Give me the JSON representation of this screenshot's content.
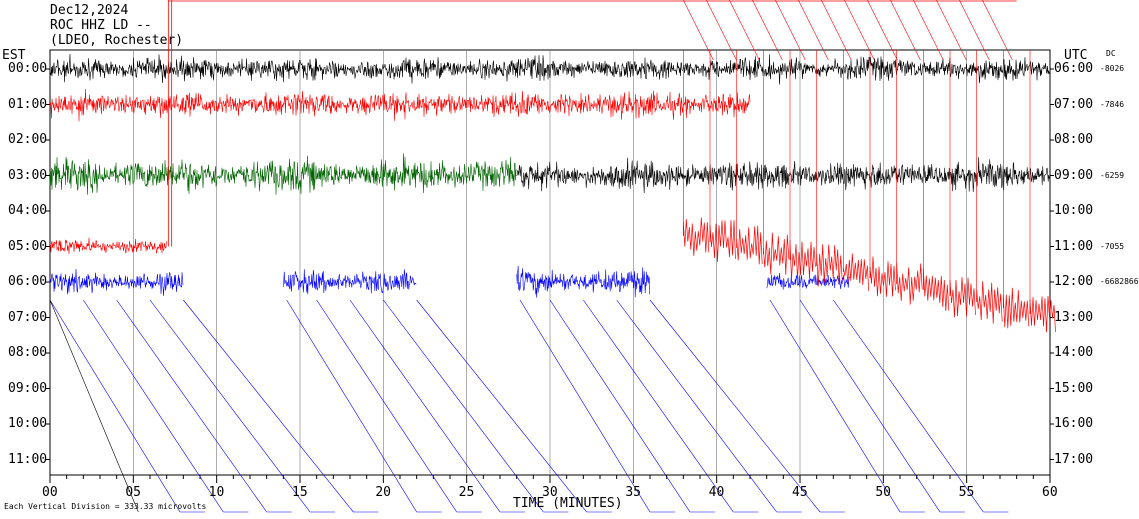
{
  "header": {
    "date": "Dec12,2024",
    "station": "ROC HHZ LD --",
    "network": "(LDEO, Rochester)"
  },
  "left_tz": "EST",
  "right_tz": "UTC",
  "dc_label": "DC",
  "footer_scale": "Each Vertical Division = 333.33 microvolts",
  "chart_data": {
    "type": "line",
    "title": "",
    "xlabel": "TIME (MINUTES)",
    "ylabel": "",
    "xlim": [
      0,
      60
    ],
    "x_ticks": [
      "00",
      "05",
      "10",
      "15",
      "20",
      "25",
      "30",
      "35",
      "40",
      "45",
      "50",
      "55",
      "60"
    ],
    "x_tick_values": [
      0,
      5,
      10,
      15,
      20,
      25,
      30,
      35,
      40,
      45,
      50,
      55,
      60
    ],
    "left_ticks": [
      "00:00",
      "01:00",
      "02:00",
      "03:00",
      "04:00",
      "05:00",
      "06:00",
      "07:00",
      "08:00",
      "09:00",
      "10:00",
      "11:00"
    ],
    "right_ticks": [
      "06:00",
      "07:00",
      "08:00",
      "09:00",
      "10:00",
      "11:00",
      "12:00",
      "13:00",
      "14:00",
      "15:00",
      "16:00",
      "17:00"
    ],
    "dc_offsets": [
      "-8026",
      "-7846",
      "",
      "-6259",
      "",
      "-7055",
      "-6682866",
      "",
      "",
      "",
      "",
      ""
    ],
    "grid": "vertical every 5 minutes",
    "trace_colors": [
      "#000000",
      "#ff0000",
      "#006400",
      "#0000ff"
    ],
    "traces": [
      {
        "row": 0,
        "start": 0,
        "end": 60,
        "color": "#000000",
        "amp": 20
      },
      {
        "row": 1,
        "start": 0,
        "end": 42,
        "color": "#ff0000",
        "amp": 22
      },
      {
        "row": 3,
        "start": 0,
        "end": 28,
        "color": "#006400",
        "amp": 28
      },
      {
        "row": 3,
        "start": 28,
        "end": 60,
        "color": "#000000",
        "amp": 24
      },
      {
        "row": 5,
        "start": 0,
        "end": 7,
        "color": "#ff0000",
        "amp": 14
      },
      {
        "row": 6,
        "start": 0,
        "end": 8,
        "color": "#0000ff",
        "amp": 18
      },
      {
        "row": 6,
        "start": 14,
        "end": 22,
        "color": "#0000ff",
        "amp": 20
      },
      {
        "row": 6,
        "start": 28,
        "end": 36,
        "color": "#0000ff",
        "amp": 22
      },
      {
        "row": 6,
        "start": 43,
        "end": 48,
        "color": "#0000ff",
        "amp": 16
      }
    ]
  }
}
